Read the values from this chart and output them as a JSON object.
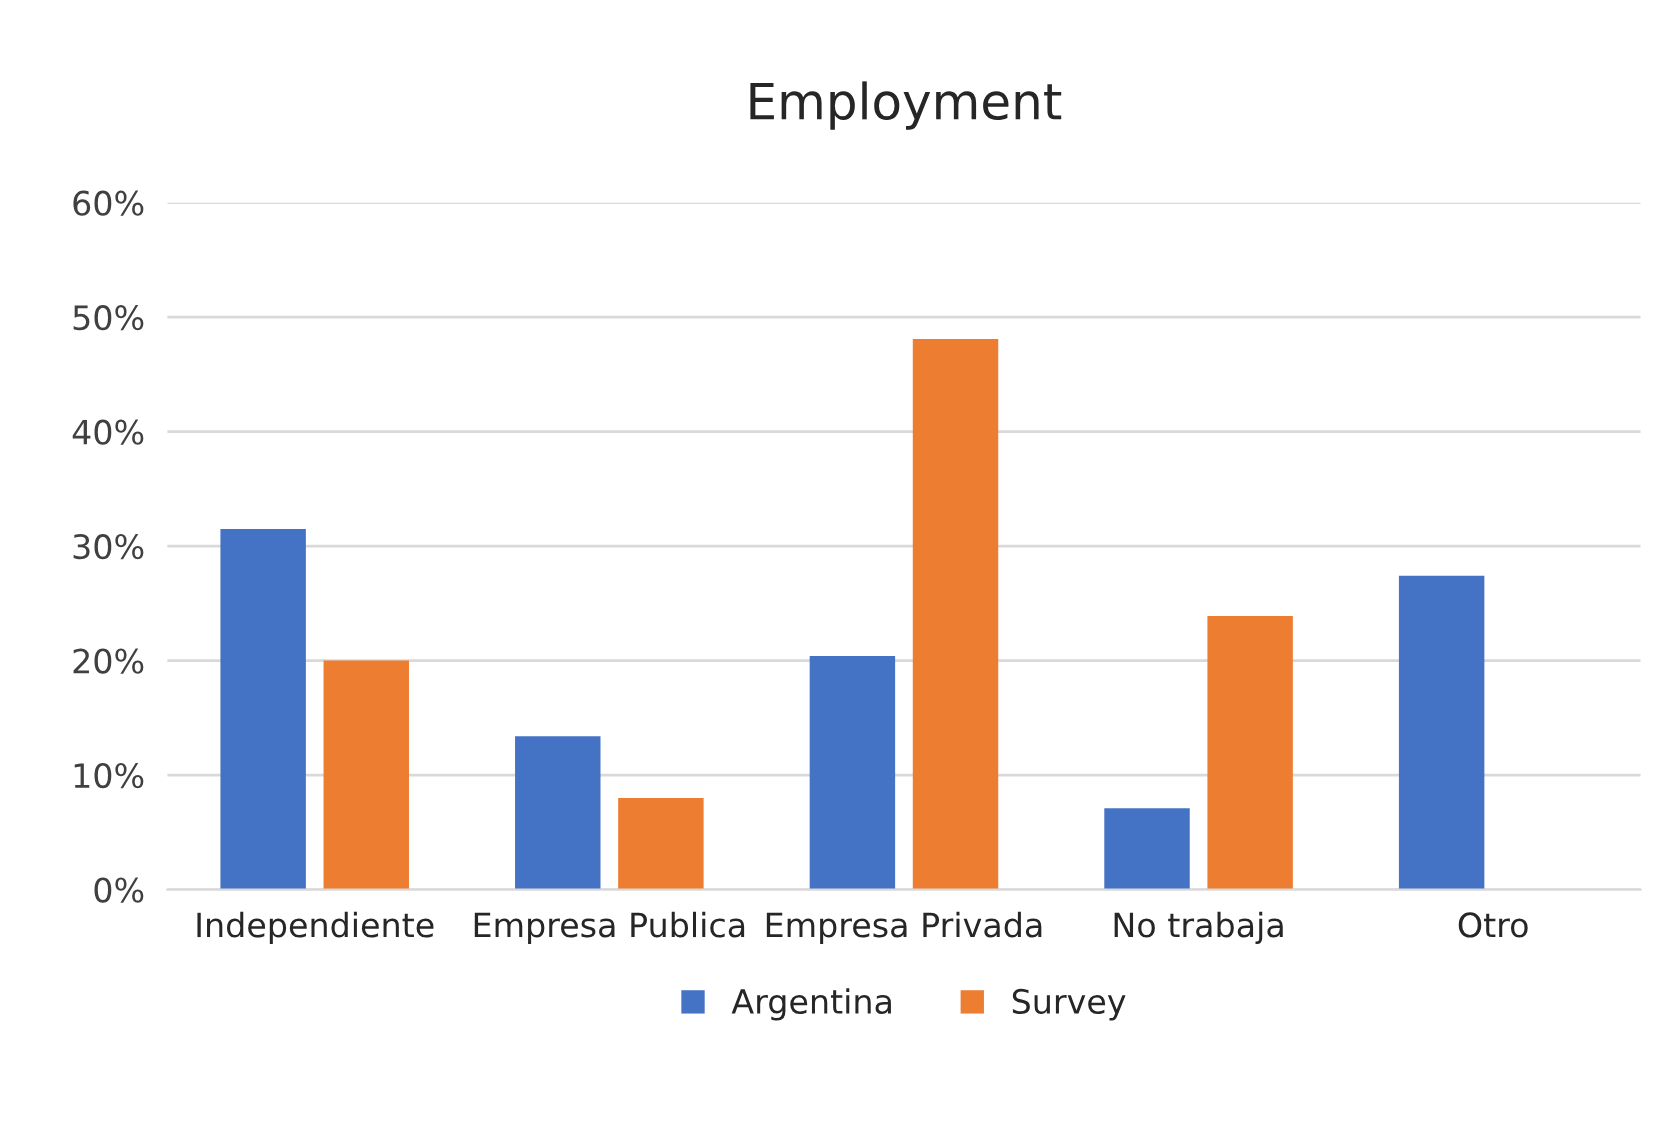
{
  "chart_data": {
    "type": "bar",
    "title": "Employment",
    "categories": [
      "Independiente",
      "Empresa Publica",
      "Empresa Privada",
      "No trabaja",
      "Otro"
    ],
    "series": [
      {
        "name": "Argentina",
        "color": "#4472c4",
        "values": [
          31.5,
          13.4,
          20.4,
          7.1,
          27.4
        ]
      },
      {
        "name": "Survey",
        "color": "#ed7d31",
        "values": [
          20.0,
          8.0,
          48.1,
          23.9,
          null
        ]
      }
    ],
    "ylim": [
      0,
      60
    ],
    "yticks": [
      {
        "value": 0,
        "label": "0%"
      },
      {
        "value": 10,
        "label": "10%"
      },
      {
        "value": 20,
        "label": "20%"
      },
      {
        "value": 30,
        "label": "30%"
      },
      {
        "value": 40,
        "label": "40%"
      },
      {
        "value": 50,
        "label": "50%"
      },
      {
        "value": 60,
        "label": "60%"
      }
    ],
    "grid": "y",
    "legend": "bottom"
  }
}
